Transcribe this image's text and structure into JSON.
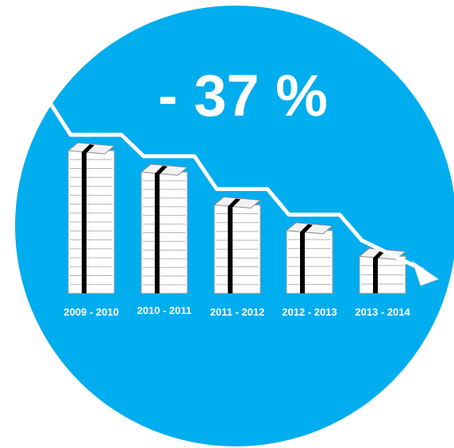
{
  "headline": "- 37 %",
  "colors": {
    "background_circle": "#00adef",
    "stack_fill": "#ffffff",
    "stack_band": "#000000",
    "trend_arrow": "#ffffff"
  },
  "chart_data": {
    "type": "bar",
    "categories": [
      "2009 - 2010",
      "2010 - 2011",
      "2011 - 2012",
      "2012 - 2013",
      "2013 - 2014"
    ],
    "values": [
      100,
      85,
      62,
      44,
      26
    ],
    "title": "",
    "xlabel": "",
    "ylabel": "",
    "ylim": [
      0,
      100
    ],
    "bar_style": "stacked-paper-pile",
    "trend": "decreasing-arrow",
    "grid": false,
    "legend": "none"
  }
}
